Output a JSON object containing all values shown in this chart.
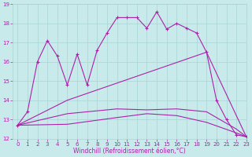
{
  "xlabel": "Windchill (Refroidissement éolien,°C)",
  "background_color": "#c8eaea",
  "grid_color": "#aad4d4",
  "line_color": "#aa22aa",
  "line1_x": [
    0,
    1,
    2,
    3,
    4,
    5,
    6,
    7,
    8,
    9,
    10,
    11,
    12,
    13,
    14,
    15,
    16,
    17,
    18,
    19,
    20,
    21,
    22,
    23
  ],
  "line1_y": [
    12.7,
    13.4,
    16.0,
    17.1,
    16.3,
    14.8,
    16.4,
    14.8,
    16.6,
    17.5,
    18.3,
    18.3,
    18.3,
    17.75,
    18.6,
    17.7,
    18.0,
    17.75,
    17.5,
    16.5,
    14.0,
    13.0,
    12.2,
    12.1
  ],
  "line2_x": [
    0,
    5,
    19,
    23
  ],
  "line2_y": [
    12.7,
    14.0,
    16.5,
    12.1
  ],
  "line3_x": [
    0,
    5,
    10,
    13,
    16,
    19,
    22,
    23
  ],
  "line3_y": [
    12.7,
    13.3,
    13.55,
    13.5,
    13.55,
    13.4,
    12.5,
    12.1
  ],
  "line4_x": [
    0,
    5,
    10,
    13,
    16,
    19,
    22,
    23
  ],
  "line4_y": [
    12.7,
    12.75,
    13.1,
    13.3,
    13.2,
    12.85,
    12.3,
    12.1
  ],
  "ylim": [
    12,
    19
  ],
  "xlim": [
    -0.5,
    23
  ],
  "yticks": [
    12,
    13,
    14,
    15,
    16,
    17,
    18,
    19
  ],
  "xticks": [
    0,
    1,
    2,
    3,
    4,
    5,
    6,
    7,
    8,
    9,
    10,
    11,
    12,
    13,
    14,
    15,
    16,
    17,
    18,
    19,
    20,
    21,
    22,
    23
  ],
  "tick_fontsize": 5,
  "xlabel_fontsize": 5.5
}
